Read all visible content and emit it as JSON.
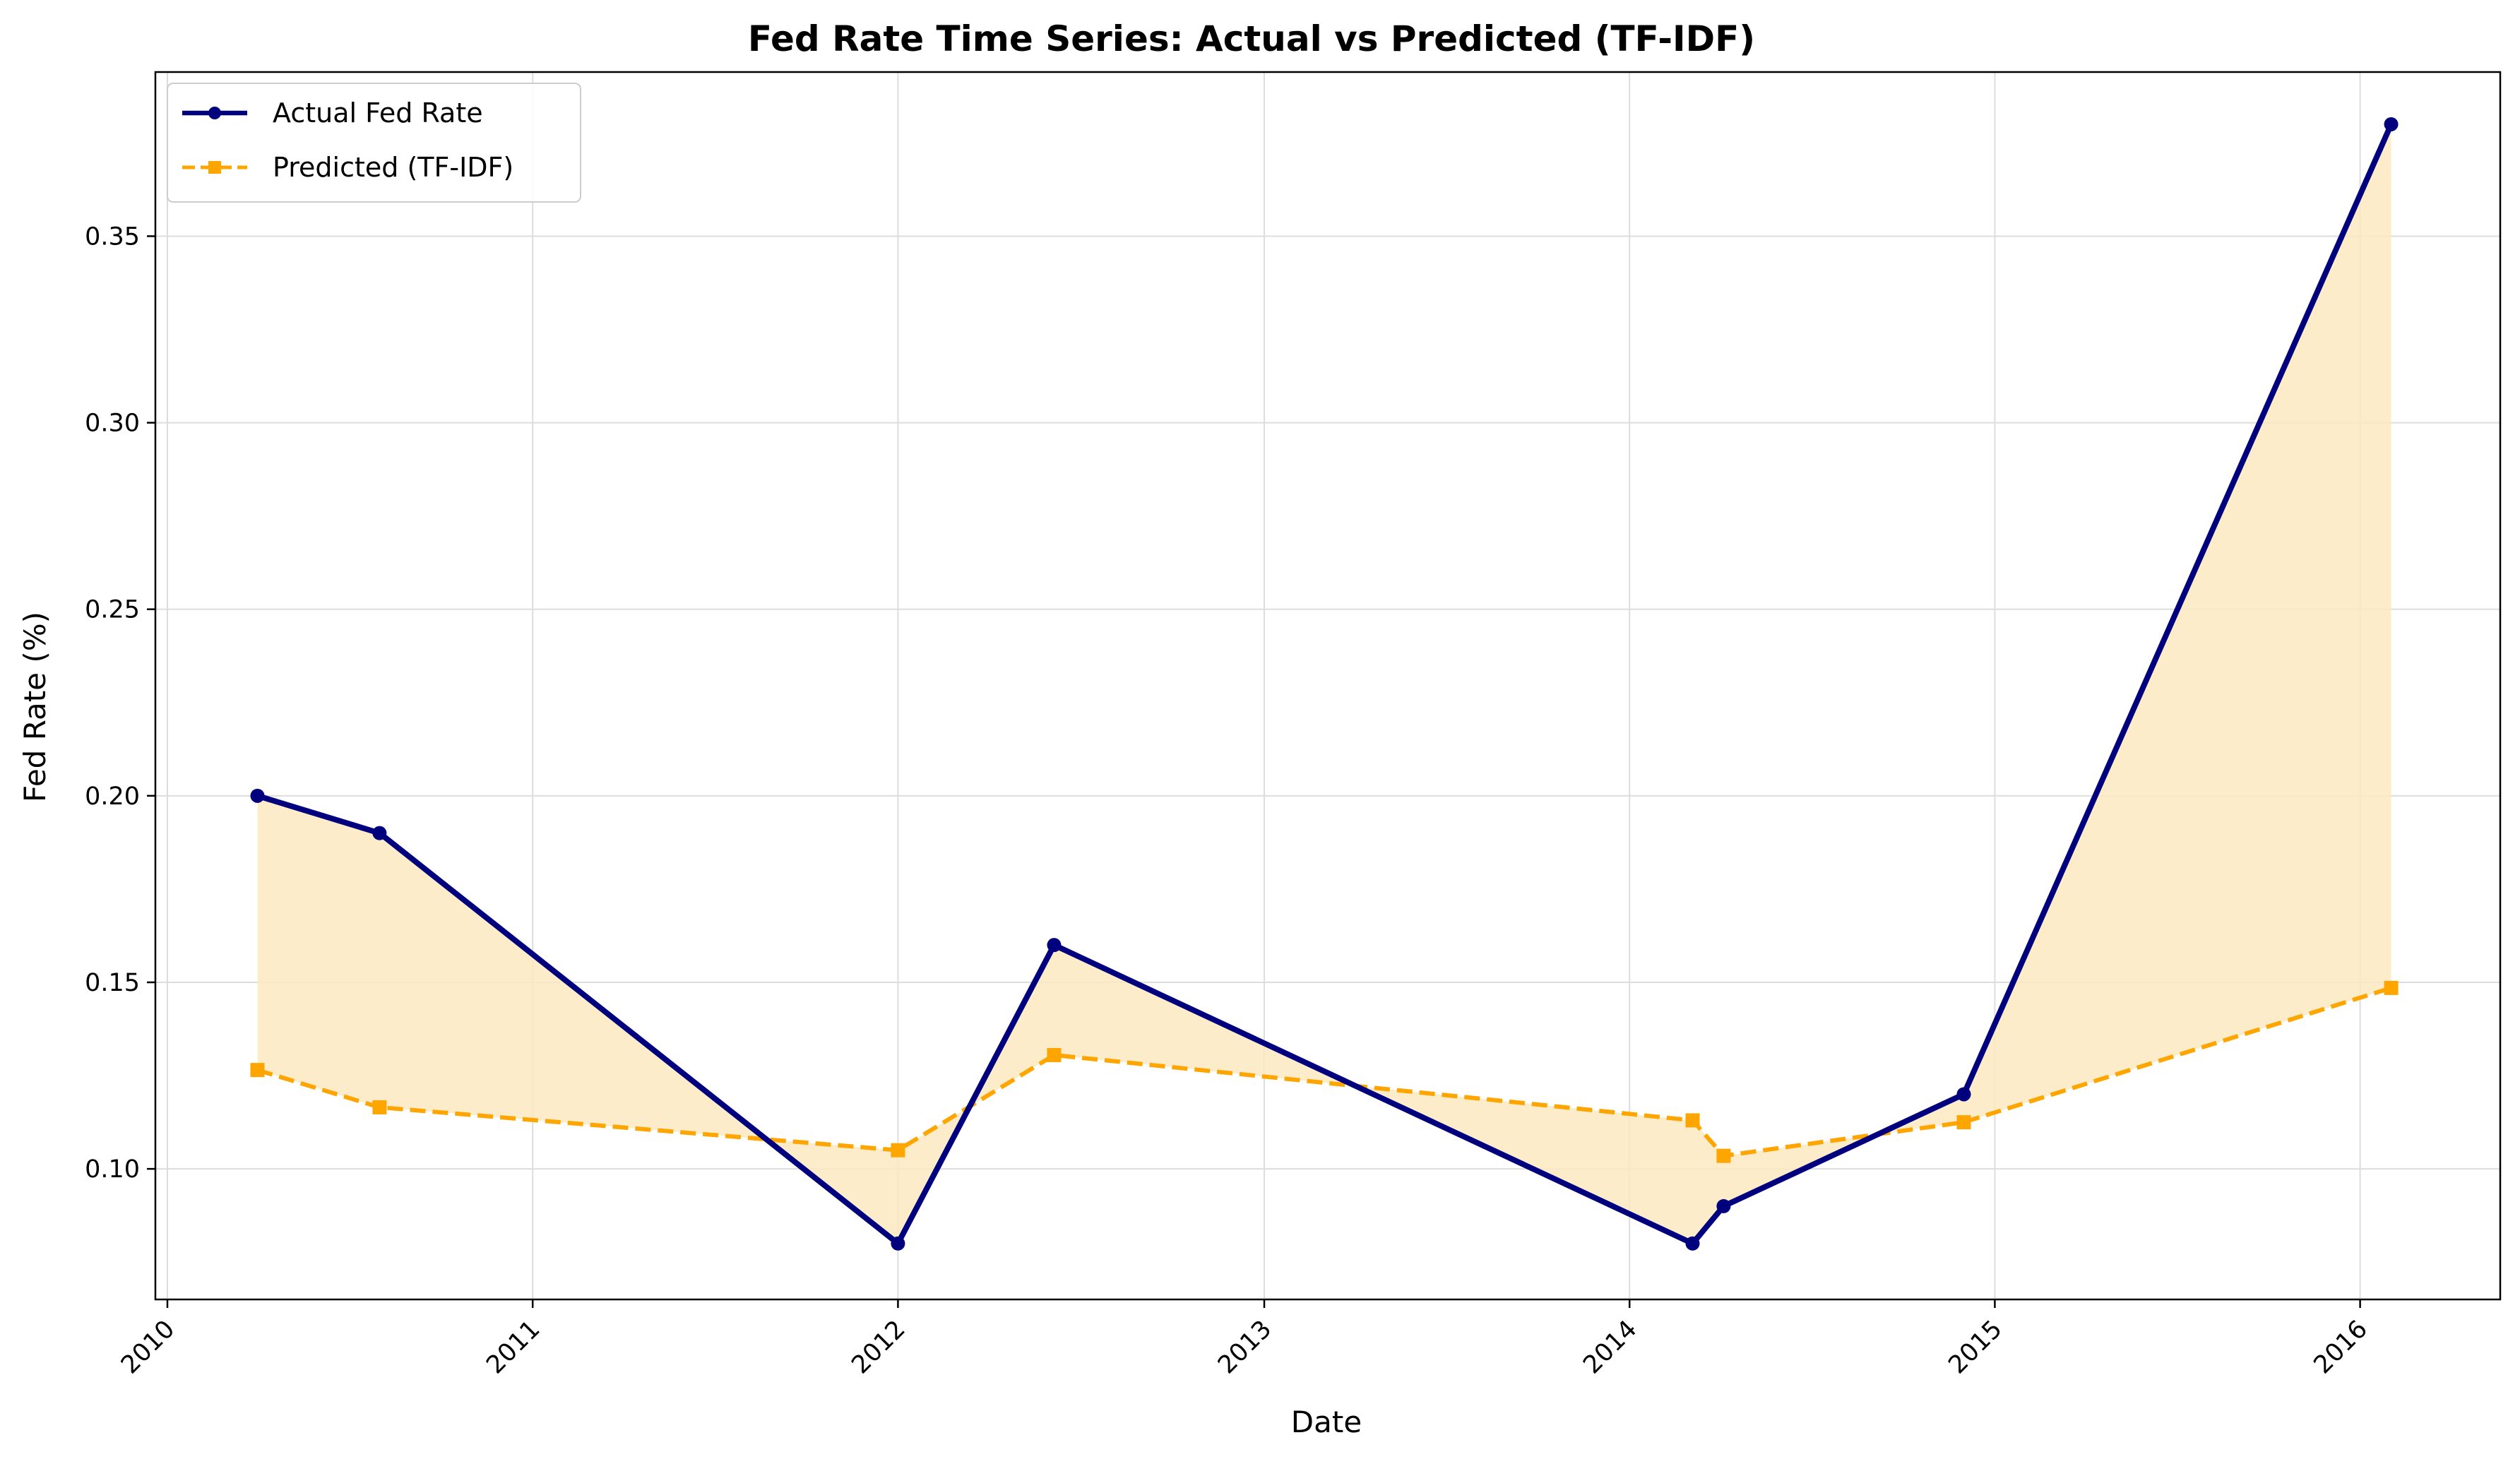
{
  "chart_data": {
    "type": "line",
    "title": "Fed Rate Time Series: Actual vs Predicted (TF-IDF)",
    "xlabel": "Date",
    "ylabel": "Fed Rate (%)",
    "x_axis_type": "date",
    "xlim": [
      "2009-12-20",
      "2016-05-20"
    ],
    "ylim": [
      0.065,
      0.394
    ],
    "x_ticks": [
      "2010",
      "2011",
      "2012",
      "2013",
      "2014",
      "2015",
      "2016"
    ],
    "y_ticks": [
      "0.10",
      "0.15",
      "0.20",
      "0.25",
      "0.30",
      "0.35"
    ],
    "grid": true,
    "legend_position": "upper-left",
    "fill_between_series": true,
    "fill_color": "#fde9c1",
    "series": [
      {
        "name": "Actual Fed Rate",
        "color": "#00007f",
        "line_style": "solid",
        "marker": "circle",
        "points": [
          {
            "x": "2010-04-01",
            "y": 0.2
          },
          {
            "x": "2010-08-01",
            "y": 0.19
          },
          {
            "x": "2012-01-01",
            "y": 0.08
          },
          {
            "x": "2012-06-05",
            "y": 0.16
          },
          {
            "x": "2014-03-05",
            "y": 0.08
          },
          {
            "x": "2014-04-05",
            "y": 0.09
          },
          {
            "x": "2014-12-01",
            "y": 0.12
          },
          {
            "x": "2016-02-01",
            "y": 0.38
          }
        ]
      },
      {
        "name": "Predicted (TF-IDF)",
        "color": "#ffa500",
        "line_style": "dashed",
        "marker": "square",
        "points": [
          {
            "x": "2010-04-01",
            "y": 0.1265
          },
          {
            "x": "2010-08-01",
            "y": 0.1165
          },
          {
            "x": "2012-01-01",
            "y": 0.105
          },
          {
            "x": "2012-06-05",
            "y": 0.1305
          },
          {
            "x": "2014-03-05",
            "y": 0.113
          },
          {
            "x": "2014-04-05",
            "y": 0.1035
          },
          {
            "x": "2014-12-01",
            "y": 0.1125
          },
          {
            "x": "2016-02-01",
            "y": 0.1485
          }
        ]
      }
    ]
  }
}
